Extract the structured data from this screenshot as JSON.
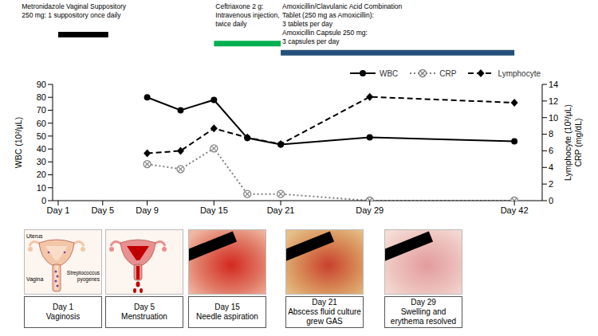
{
  "treatments": [
    {
      "lines": [
        "Metronidazole Vaginal Suppository",
        "250 mg: 1 suppository once daily"
      ],
      "start": 1,
      "end": 5.5,
      "color": "#000000"
    },
    {
      "lines": [
        "Ceftriaxone 2 g:",
        "Intravenous injection,",
        "twice daily"
      ],
      "start": 15,
      "end": 21,
      "color": "#00b050"
    },
    {
      "lines": [
        "Amoxicillin/Clavulanic Acid Combination",
        "Tablet (250 mg as Amoxicillin):",
        "3 tablets per day",
        "Amoxicillin Capsule 250 mg:",
        "3 capsules per day"
      ],
      "start": 21,
      "end": 42,
      "color": "#254f7b"
    }
  ],
  "chart_data": {
    "type": "line",
    "x": [
      9,
      12,
      15,
      18,
      21,
      29,
      42
    ],
    "xlim": [
      0.5,
      44.5
    ],
    "xticks": [
      {
        "value": 1,
        "label": "Day 1"
      },
      {
        "value": 5,
        "label": "Day 5"
      },
      {
        "value": 9,
        "label": "Day 9"
      },
      {
        "value": 15,
        "label": "Day 15"
      },
      {
        "value": 21,
        "label": "Day 21"
      },
      {
        "value": 29,
        "label": "Day 29"
      },
      {
        "value": 42,
        "label": "Day 42"
      }
    ],
    "ylim": [
      0,
      90
    ],
    "yticks": [
      0,
      10,
      20,
      30,
      40,
      50,
      60,
      70,
      80,
      90
    ],
    "y_label": "WBC (10²/μL)",
    "y2lim": [
      0,
      14
    ],
    "y2ticks": [
      0,
      2,
      4,
      6,
      8,
      10,
      12,
      14
    ],
    "y2_label": [
      "Lymphocyte (10²/μL)",
      "CRP (mg/dL)"
    ],
    "grid": false,
    "legend": "top right",
    "series": [
      {
        "name": "WBC",
        "color": "#000000",
        "line_style": "solid",
        "marker": "circle",
        "values": [
          80,
          70,
          78,
          48.5,
          43.5,
          49,
          46
        ]
      },
      {
        "name": "CRP",
        "color": "#7f7f7f",
        "line_style": "dotted",
        "marker": "circle-x",
        "axis": "y2",
        "values": [
          4.4,
          3.8,
          6.3,
          0.8,
          0.8,
          0,
          0
        ]
      },
      {
        "name": "Lymphocyte",
        "color": "#000000",
        "line_style": "dashed",
        "marker": "diamond",
        "axis": "y2",
        "values": [
          5.7,
          6.0,
          8.7,
          7.6,
          6.8,
          12.5,
          11.8
        ]
      }
    ]
  },
  "panels": [
    {
      "day": "Day 1",
      "caption": "Vaginosis",
      "labels": [
        "Uterus",
        "Vagina",
        "Streptococcus pyogenes"
      ]
    },
    {
      "day": "Day 5",
      "caption": "Menstruation"
    },
    {
      "day": "Day 15",
      "caption": "Needle aspiration"
    },
    {
      "day": "Day 21",
      "caption": "Abscess fluid culture grew GAS"
    },
    {
      "day": "Day 29",
      "caption": "Swelling and erythema resolved"
    }
  ]
}
